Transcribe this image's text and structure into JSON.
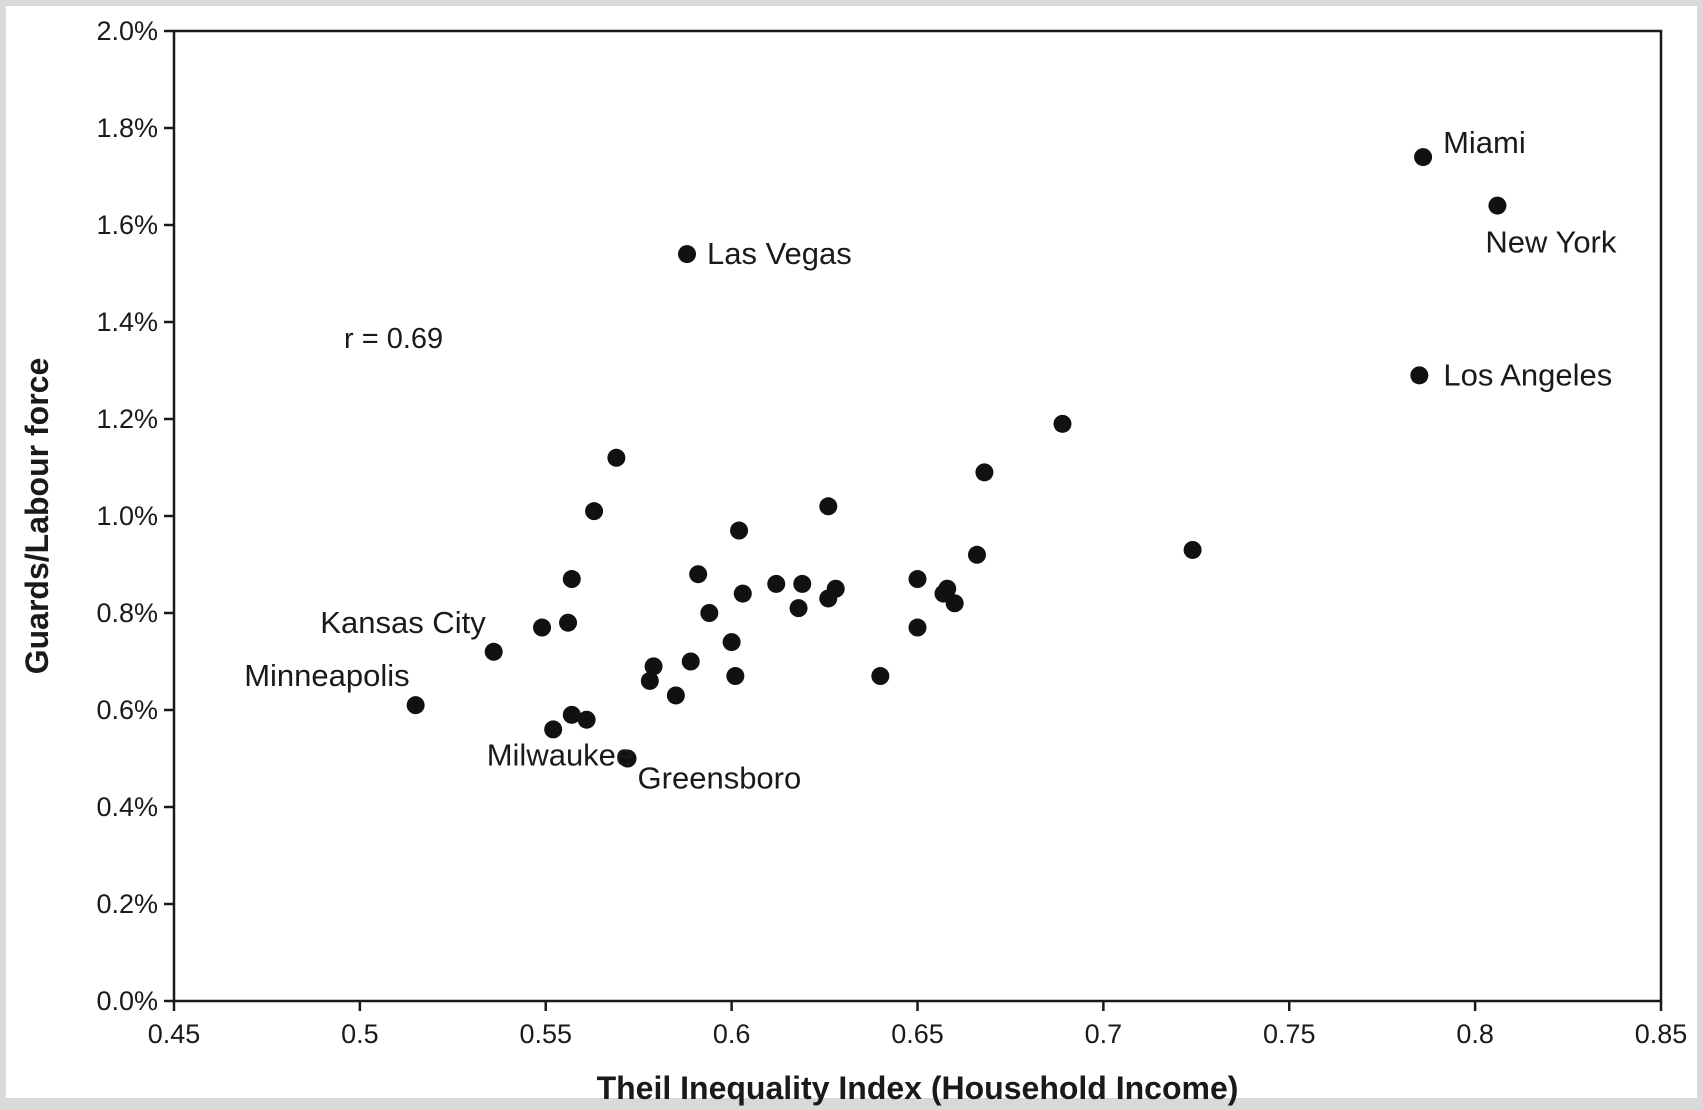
{
  "chart_data": {
    "type": "scatter",
    "title": "",
    "xlabel": "Theil Inequality Index (Household Income)",
    "ylabel": "Guards/Labour force",
    "xlim": [
      0.45,
      0.85
    ],
    "ylim": [
      0.0,
      2.0
    ],
    "x_ticks": [
      "0.45",
      "0.5",
      "0.55",
      "0.6",
      "0.65",
      "0.7",
      "0.75",
      "0.8",
      "0.85"
    ],
    "y_ticks": [
      "0.0%",
      "0.2%",
      "0.4%",
      "0.6%",
      "0.8%",
      "1.0%",
      "1.2%",
      "1.4%",
      "1.6%",
      "1.8%",
      "2.0%"
    ],
    "y_unit": "percent",
    "grid": false,
    "annotation": "r = 0.69",
    "points": [
      {
        "x": 0.786,
        "y": 1.74,
        "label": "Miami"
      },
      {
        "x": 0.806,
        "y": 1.64,
        "label": "New York"
      },
      {
        "x": 0.588,
        "y": 1.54,
        "label": "Las Vegas"
      },
      {
        "x": 0.785,
        "y": 1.29,
        "label": "Los Angeles"
      },
      {
        "x": 0.536,
        "y": 0.72,
        "label": "Kansas City"
      },
      {
        "x": 0.515,
        "y": 0.61,
        "label": "Minneapolis"
      },
      {
        "x": 0.552,
        "y": 0.56,
        "label": "Milwaukee"
      },
      {
        "x": 0.572,
        "y": 0.5,
        "label": "Greensboro"
      },
      {
        "x": 0.689,
        "y": 1.19
      },
      {
        "x": 0.569,
        "y": 1.12
      },
      {
        "x": 0.668,
        "y": 1.09
      },
      {
        "x": 0.626,
        "y": 1.02
      },
      {
        "x": 0.563,
        "y": 1.01
      },
      {
        "x": 0.602,
        "y": 0.97
      },
      {
        "x": 0.724,
        "y": 0.93
      },
      {
        "x": 0.666,
        "y": 0.92
      },
      {
        "x": 0.591,
        "y": 0.88
      },
      {
        "x": 0.557,
        "y": 0.87
      },
      {
        "x": 0.65,
        "y": 0.87
      },
      {
        "x": 0.612,
        "y": 0.86
      },
      {
        "x": 0.619,
        "y": 0.86
      },
      {
        "x": 0.628,
        "y": 0.85
      },
      {
        "x": 0.658,
        "y": 0.85
      },
      {
        "x": 0.603,
        "y": 0.84
      },
      {
        "x": 0.626,
        "y": 0.83
      },
      {
        "x": 0.657,
        "y": 0.84
      },
      {
        "x": 0.66,
        "y": 0.82
      },
      {
        "x": 0.618,
        "y": 0.81
      },
      {
        "x": 0.594,
        "y": 0.8
      },
      {
        "x": 0.556,
        "y": 0.78
      },
      {
        "x": 0.549,
        "y": 0.77
      },
      {
        "x": 0.65,
        "y": 0.77
      },
      {
        "x": 0.6,
        "y": 0.74
      },
      {
        "x": 0.589,
        "y": 0.7
      },
      {
        "x": 0.579,
        "y": 0.69
      },
      {
        "x": 0.601,
        "y": 0.67
      },
      {
        "x": 0.64,
        "y": 0.67
      },
      {
        "x": 0.578,
        "y": 0.66
      },
      {
        "x": 0.585,
        "y": 0.63
      },
      {
        "x": 0.557,
        "y": 0.59
      },
      {
        "x": 0.561,
        "y": 0.58
      }
    ]
  }
}
